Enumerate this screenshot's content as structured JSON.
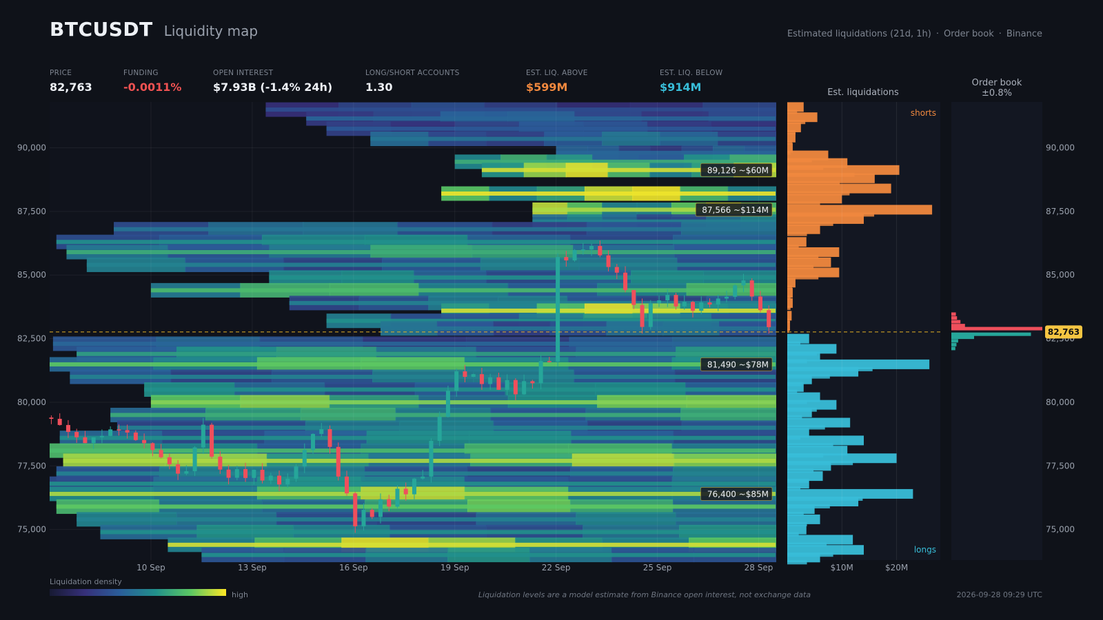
{
  "header": {
    "symbol": "BTCUSDT",
    "title": "Liquidity map",
    "source_parts": [
      "Estimated liquidations (21d, 1h)",
      "Order book",
      "Binance"
    ]
  },
  "stats": [
    {
      "label": "PRICE",
      "value": "82,763",
      "color": "#eef1f6"
    },
    {
      "label": "FUNDING",
      "value": "-0.0011%",
      "color": "#f05252"
    },
    {
      "label": "OPEN INTEREST",
      "value": "$7.93B (-1.4% 24h)",
      "color": "#eef1f6"
    },
    {
      "label": "LONG/SHORT ACCOUNTS",
      "value": "1.30",
      "color": "#eef1f6"
    },
    {
      "label": "EST. LIQ. ABOVE",
      "value": "$599M",
      "color": "#f0883e"
    },
    {
      "label": "EST. LIQ. BELOW",
      "value": "$914M",
      "color": "#38bdd8"
    }
  ],
  "panels": {
    "liquidations_title": "Est. liquidations",
    "orderbook_title_line1": "Order book",
    "orderbook_title_line2": "±0.8%",
    "shorts_label": "shorts",
    "longs_label": "longs"
  },
  "legend": {
    "title": "Liquidation density",
    "high_label": "high"
  },
  "footnote": "Liquidation levels are a model estimate from Binance open interest, not exchange data",
  "timestamp": "2026-09-28 09:29 UTC",
  "colors": {
    "up": "#26a69a",
    "down": "#ef4f5c",
    "shorts": "#f0883e",
    "longs": "#38bdd8",
    "price_line": "#e6b325",
    "badge": "#f5c542",
    "ask_book": "#ef4f5c",
    "bid_book": "#26a69a"
  },
  "chart_data": {
    "type": "heatmap",
    "current_price": 82763,
    "current_price_label": "82,763",
    "y_range": [
      73800,
      91800
    ],
    "y_ticks": [
      75000,
      77500,
      80000,
      82500,
      85000,
      87500,
      90000
    ],
    "y_tick_labels": [
      "75,000",
      "77,500",
      "80,000",
      "82,500",
      "85,000",
      "87,500",
      "90,000"
    ],
    "x_range_days": [
      7.0,
      28.5
    ],
    "x_tick_days": [
      10,
      13,
      16,
      19,
      22,
      25,
      28
    ],
    "x_tick_labels": [
      "10 Sep",
      "13 Sep",
      "16 Sep",
      "19 Sep",
      "22 Sep",
      "25 Sep",
      "28 Sep"
    ],
    "liq_x_ticks": [
      10,
      20
    ],
    "liq_x_tick_labels": [
      "$10M",
      "$20M"
    ],
    "liq_x_range": [
      0,
      28
    ],
    "annotations": [
      {
        "price": 89126,
        "label": "89,126  ~$60M"
      },
      {
        "price": 87566,
        "label": "87,566  ~$114M"
      },
      {
        "price": 81490,
        "label": "81,490  ~$78M"
      },
      {
        "price": 76400,
        "label": "76,400  ~$85M"
      }
    ],
    "price_series_days": [
      7,
      8,
      9,
      10,
      11,
      11.5,
      12,
      13,
      14,
      15,
      15.7,
      16,
      17,
      18,
      18.5,
      19,
      20,
      21,
      21.8,
      22,
      23,
      24,
      24.5,
      25,
      26,
      27,
      27.5,
      28,
      28.4
    ],
    "price_series": [
      79400,
      78400,
      79000,
      78200,
      77000,
      79200,
      77200,
      77200,
      76800,
      79200,
      76700,
      75300,
      76100,
      77000,
      79300,
      81200,
      80800,
      80500,
      81800,
      85500,
      86200,
      84700,
      83000,
      84200,
      83700,
      84100,
      84900,
      83700,
      82763
    ],
    "liquidation_bands": [
      {
        "price": 91500,
        "start_day": 13.4,
        "intensity": 0.35
      },
      {
        "price": 91150,
        "start_day": 14.6,
        "intensity": 0.45
      },
      {
        "price": 90750,
        "start_day": 15.2,
        "intensity": 0.4
      },
      {
        "price": 90350,
        "start_day": 16.5,
        "intensity": 0.5
      },
      {
        "price": 89800,
        "start_day": 22.0,
        "intensity": 0.45
      },
      {
        "price": 89450,
        "start_day": 19.0,
        "intensity": 0.7
      },
      {
        "price": 89126,
        "start_day": 19.8,
        "intensity": 0.95
      },
      {
        "price": 88200,
        "start_day": 18.6,
        "intensity": 0.98
      },
      {
        "price": 87566,
        "start_day": 21.3,
        "intensity": 0.9
      },
      {
        "price": 87100,
        "start_day": 21.3,
        "intensity": 0.55
      },
      {
        "price": 86800,
        "start_day": 8.9,
        "intensity": 0.5
      },
      {
        "price": 86300,
        "start_day": 7.2,
        "intensity": 0.6
      },
      {
        "price": 85900,
        "start_day": 7.5,
        "intensity": 0.7
      },
      {
        "price": 85400,
        "start_day": 8.1,
        "intensity": 0.55
      },
      {
        "price": 84900,
        "start_day": 13.5,
        "intensity": 0.6
      },
      {
        "price": 84400,
        "start_day": 10.0,
        "intensity": 0.75
      },
      {
        "price": 83900,
        "start_day": 14.1,
        "intensity": 0.55
      },
      {
        "price": 83600,
        "start_day": 18.6,
        "intensity": 0.95
      },
      {
        "price": 83200,
        "start_day": 15.2,
        "intensity": 0.6
      },
      {
        "price": 82900,
        "start_day": 16.8,
        "intensity": 0.5
      },
      {
        "price": 82300,
        "start_day": 7.1,
        "intensity": 0.45
      },
      {
        "price": 81900,
        "start_day": 7.8,
        "intensity": 0.65
      },
      {
        "price": 81490,
        "start_day": 7.0,
        "intensity": 0.8
      },
      {
        "price": 81000,
        "start_day": 7.6,
        "intensity": 0.55
      },
      {
        "price": 80500,
        "start_day": 9.8,
        "intensity": 0.6
      },
      {
        "price": 80000,
        "start_day": 10.0,
        "intensity": 0.85
      },
      {
        "price": 79500,
        "start_day": 8.8,
        "intensity": 0.7
      },
      {
        "price": 79000,
        "start_day": 9.0,
        "intensity": 0.55
      },
      {
        "price": 78600,
        "start_day": 7.3,
        "intensity": 0.6
      },
      {
        "price": 78100,
        "start_day": 7.0,
        "intensity": 0.75
      },
      {
        "price": 77700,
        "start_day": 7.4,
        "intensity": 0.9
      },
      {
        "price": 77200,
        "start_day": 7.2,
        "intensity": 0.55
      },
      {
        "price": 76800,
        "start_day": 7.0,
        "intensity": 0.6
      },
      {
        "price": 76400,
        "start_day": 7.0,
        "intensity": 0.9
      },
      {
        "price": 75900,
        "start_day": 7.2,
        "intensity": 0.8
      },
      {
        "price": 75400,
        "start_day": 7.8,
        "intensity": 0.55
      },
      {
        "price": 74900,
        "start_day": 8.5,
        "intensity": 0.6
      },
      {
        "price": 74400,
        "start_day": 10.5,
        "intensity": 0.95
      },
      {
        "price": 74000,
        "start_day": 11.5,
        "intensity": 0.6
      }
    ],
    "liquidations_above": [
      {
        "price": 91600,
        "value": 3
      },
      {
        "price": 91200,
        "value": 5.5
      },
      {
        "price": 90800,
        "value": 2.5
      },
      {
        "price": 90400,
        "value": 1.5
      },
      {
        "price": 90000,
        "value": 1
      },
      {
        "price": 89700,
        "value": 7.5
      },
      {
        "price": 89400,
        "value": 11
      },
      {
        "price": 89126,
        "value": 20.5
      },
      {
        "price": 88800,
        "value": 16
      },
      {
        "price": 88400,
        "value": 19
      },
      {
        "price": 88000,
        "value": 10
      },
      {
        "price": 87566,
        "value": 26.5
      },
      {
        "price": 87200,
        "value": 14
      },
      {
        "price": 86800,
        "value": 6
      },
      {
        "price": 86300,
        "value": 3.5
      },
      {
        "price": 85900,
        "value": 9.5
      },
      {
        "price": 85500,
        "value": 8
      },
      {
        "price": 85100,
        "value": 9.5
      },
      {
        "price": 84700,
        "value": 1.5
      },
      {
        "price": 84300,
        "value": 1
      },
      {
        "price": 83900,
        "value": 1
      },
      {
        "price": 83400,
        "value": 0.8
      },
      {
        "price": 83000,
        "value": 0.5
      }
    ],
    "liquidations_below": [
      {
        "price": 82500,
        "value": 4
      },
      {
        "price": 82100,
        "value": 9
      },
      {
        "price": 81800,
        "value": 6
      },
      {
        "price": 81490,
        "value": 26
      },
      {
        "price": 81200,
        "value": 13
      },
      {
        "price": 80900,
        "value": 4.5
      },
      {
        "price": 80600,
        "value": 3
      },
      {
        "price": 80200,
        "value": 6
      },
      {
        "price": 79900,
        "value": 9
      },
      {
        "price": 79600,
        "value": 4.5
      },
      {
        "price": 79200,
        "value": 11.5
      },
      {
        "price": 78800,
        "value": 4
      },
      {
        "price": 78500,
        "value": 14
      },
      {
        "price": 78100,
        "value": 11
      },
      {
        "price": 77800,
        "value": 20
      },
      {
        "price": 77500,
        "value": 8
      },
      {
        "price": 77100,
        "value": 6.5
      },
      {
        "price": 76800,
        "value": 4
      },
      {
        "price": 76400,
        "value": 23
      },
      {
        "price": 76100,
        "value": 13
      },
      {
        "price": 75800,
        "value": 5
      },
      {
        "price": 75400,
        "value": 6
      },
      {
        "price": 75000,
        "value": 3.5
      },
      {
        "price": 74600,
        "value": 12
      },
      {
        "price": 74200,
        "value": 14
      },
      {
        "price": 73900,
        "value": 6
      }
    ],
    "order_book_asks": [
      {
        "price": 83450,
        "value": 0.8
      },
      {
        "price": 83300,
        "value": 1.0
      },
      {
        "price": 83150,
        "value": 1.6
      },
      {
        "price": 83000,
        "value": 2.4
      },
      {
        "price": 82880,
        "value": 16
      }
    ],
    "order_book_bids": [
      {
        "price": 82660,
        "value": 14
      },
      {
        "price": 82540,
        "value": 4
      },
      {
        "price": 82400,
        "value": 1.2
      },
      {
        "price": 82250,
        "value": 0.9
      },
      {
        "price": 82100,
        "value": 0.7
      }
    ],
    "order_book_range": [
      0,
      16
    ]
  }
}
